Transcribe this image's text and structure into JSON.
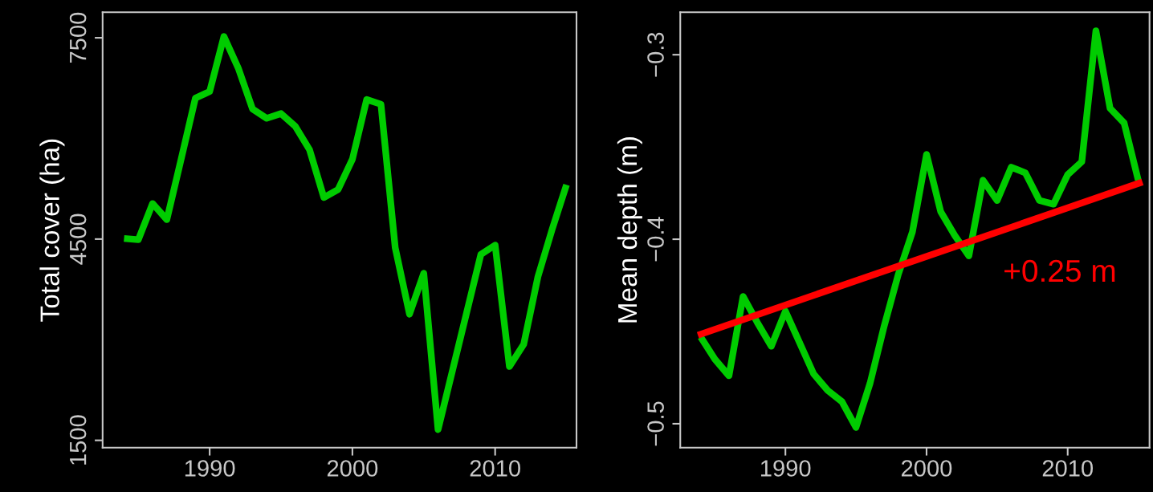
{
  "chart_data": [
    {
      "type": "line",
      "ylabel": "Total cover (ha)",
      "x": [
        1984,
        1985,
        1986,
        1987,
        1988,
        1989,
        1990,
        1991,
        1992,
        1993,
        1994,
        1995,
        1996,
        1997,
        1998,
        1999,
        2000,
        2001,
        2002,
        2003,
        2004,
        2005,
        2006,
        2007,
        2008,
        2009,
        2010,
        2011,
        2012,
        2013,
        2014,
        2015
      ],
      "series": [
        {
          "color": "#00cc00",
          "values": [
            4510,
            4490,
            5030,
            4790,
            5690,
            6600,
            6700,
            7520,
            7050,
            6440,
            6300,
            6370,
            6180,
            5830,
            5120,
            5240,
            5690,
            6580,
            6510,
            4370,
            3380,
            3990,
            1660,
            2530,
            3400,
            4270,
            4410,
            2600,
            2930,
            3940,
            4650,
            5310
          ]
        }
      ],
      "xlim": [
        1982.5,
        2015.7
      ],
      "xticks": [
        1990,
        2000,
        2010
      ],
      "ylim": [
        1390,
        7880
      ],
      "yticks": [
        1500,
        4500,
        7500
      ],
      "grid": false
    },
    {
      "type": "line",
      "ylabel": "Mean depth (m)",
      "x": [
        1984,
        1985,
        1986,
        1987,
        1988,
        1989,
        1990,
        1991,
        1992,
        1993,
        1994,
        1995,
        1996,
        1997,
        1998,
        1999,
        2000,
        2001,
        2002,
        2003,
        2004,
        2005,
        2006,
        2007,
        2008,
        2009,
        2010,
        2011,
        2012,
        2013,
        2014,
        2015
      ],
      "series": [
        {
          "color": "#00cc00",
          "values": [
            -0.453,
            -0.465,
            -0.474,
            -0.431,
            -0.445,
            -0.458,
            -0.439,
            -0.456,
            -0.473,
            -0.482,
            -0.488,
            -0.502,
            -0.478,
            -0.447,
            -0.419,
            -0.396,
            -0.354,
            -0.385,
            -0.398,
            -0.409,
            -0.368,
            -0.379,
            -0.361,
            -0.364,
            -0.379,
            -0.381,
            -0.365,
            -0.358,
            -0.287,
            -0.329,
            -0.337,
            -0.368
          ]
        },
        {
          "type": "line",
          "color": "#ff0000",
          "x": [
            1983.8,
            2015.3
          ],
          "values": [
            -0.452,
            -0.369
          ]
        }
      ],
      "annotations": [
        "+0.25 m"
      ],
      "xlim": [
        1982.55,
        2015.8
      ],
      "xticks": [
        1990,
        2000,
        2010
      ],
      "ylim": [
        -0.513,
        -0.277
      ],
      "yticks": [
        {
          "value": -0.5,
          "label": "−0.5"
        },
        {
          "value": -0.4,
          "label": "−0.4"
        },
        {
          "value": -0.3,
          "label": "−0.3"
        }
      ],
      "grid": false
    }
  ]
}
